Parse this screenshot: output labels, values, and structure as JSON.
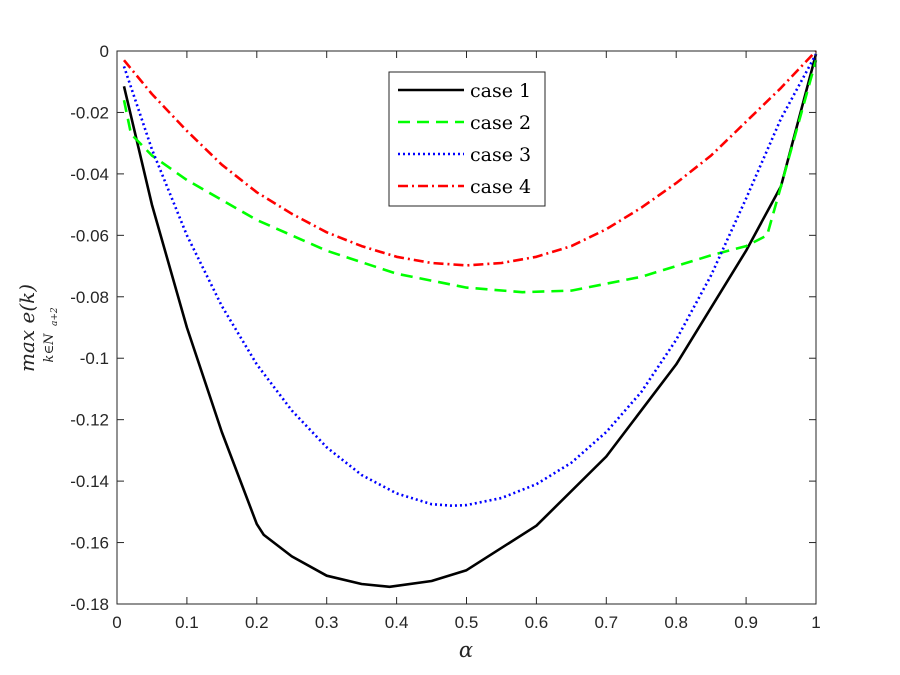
{
  "chart_data": {
    "type": "line",
    "title": "",
    "xlabel": "α",
    "ylabel": {
      "main": "max e(k)",
      "subscript": "k∈N",
      "subsubscript": "a+2"
    },
    "xlim": [
      0,
      1
    ],
    "ylim": [
      -0.18,
      0
    ],
    "x_ticks": [
      0,
      0.1,
      0.2,
      0.3,
      0.4,
      0.5,
      0.6,
      0.7,
      0.8,
      0.9,
      1
    ],
    "x_tick_labels": [
      "0",
      "0.1",
      "0.2",
      "0.3",
      "0.4",
      "0.5",
      "0.6",
      "0.7",
      "0.8",
      "0.9",
      "1"
    ],
    "y_ticks": [
      0,
      -0.02,
      -0.04,
      -0.06,
      -0.08,
      -0.1,
      -0.12,
      -0.14,
      -0.16,
      -0.18
    ],
    "y_tick_labels": [
      "0",
      "-0.02",
      "-0.04",
      "-0.06",
      "-0.08",
      "-0.1",
      "-0.12",
      "-0.14",
      "-0.16",
      "-0.18"
    ],
    "grid": false,
    "legend_position": "top-center",
    "series": [
      {
        "name": "case 1",
        "color": "#000000",
        "style": "solid",
        "x": [
          0.01,
          0.05,
          0.1,
          0.15,
          0.2,
          0.21,
          0.25,
          0.3,
          0.35,
          0.39,
          0.45,
          0.5,
          0.6,
          0.7,
          0.8,
          0.9,
          0.95,
          1.0
        ],
        "y": [
          -0.0115,
          -0.05,
          -0.09,
          -0.124,
          -0.154,
          -0.1575,
          -0.1645,
          -0.1708,
          -0.1735,
          -0.1744,
          -0.1725,
          -0.169,
          -0.1545,
          -0.132,
          -0.102,
          -0.065,
          -0.044,
          -0.001
        ]
      },
      {
        "name": "case 2",
        "color": "#00ff00",
        "style": "dashed",
        "x": [
          0.01,
          0.02,
          0.05,
          0.1,
          0.2,
          0.3,
          0.4,
          0.5,
          0.58,
          0.65,
          0.75,
          0.85,
          0.9,
          0.93,
          0.95,
          1.0
        ],
        "y": [
          -0.016,
          -0.027,
          -0.034,
          -0.042,
          -0.055,
          -0.065,
          -0.0725,
          -0.077,
          -0.0785,
          -0.078,
          -0.0735,
          -0.0665,
          -0.0635,
          -0.06,
          -0.044,
          -0.003
        ]
      },
      {
        "name": "case 3",
        "color": "#0000ff",
        "style": "dotted",
        "x": [
          0.01,
          0.05,
          0.1,
          0.15,
          0.2,
          0.25,
          0.3,
          0.35,
          0.4,
          0.45,
          0.48,
          0.5,
          0.55,
          0.6,
          0.65,
          0.7,
          0.75,
          0.8,
          0.85,
          0.9,
          0.95,
          1.0
        ],
        "y": [
          -0.005,
          -0.032,
          -0.06,
          -0.083,
          -0.102,
          -0.117,
          -0.129,
          -0.138,
          -0.144,
          -0.1475,
          -0.148,
          -0.1478,
          -0.1455,
          -0.141,
          -0.134,
          -0.124,
          -0.111,
          -0.094,
          -0.073,
          -0.048,
          -0.022,
          -0.001
        ]
      },
      {
        "name": "case 4",
        "color": "#ff0000",
        "style": "dashdot",
        "x": [
          0.01,
          0.05,
          0.1,
          0.15,
          0.2,
          0.25,
          0.3,
          0.35,
          0.4,
          0.45,
          0.5,
          0.55,
          0.6,
          0.65,
          0.7,
          0.75,
          0.8,
          0.85,
          0.9,
          0.95,
          1.0
        ],
        "y": [
          -0.003,
          -0.014,
          -0.026,
          -0.037,
          -0.046,
          -0.053,
          -0.059,
          -0.0635,
          -0.067,
          -0.069,
          -0.0698,
          -0.069,
          -0.067,
          -0.0635,
          -0.058,
          -0.051,
          -0.043,
          -0.034,
          -0.023,
          -0.012,
          0.0
        ]
      }
    ]
  }
}
